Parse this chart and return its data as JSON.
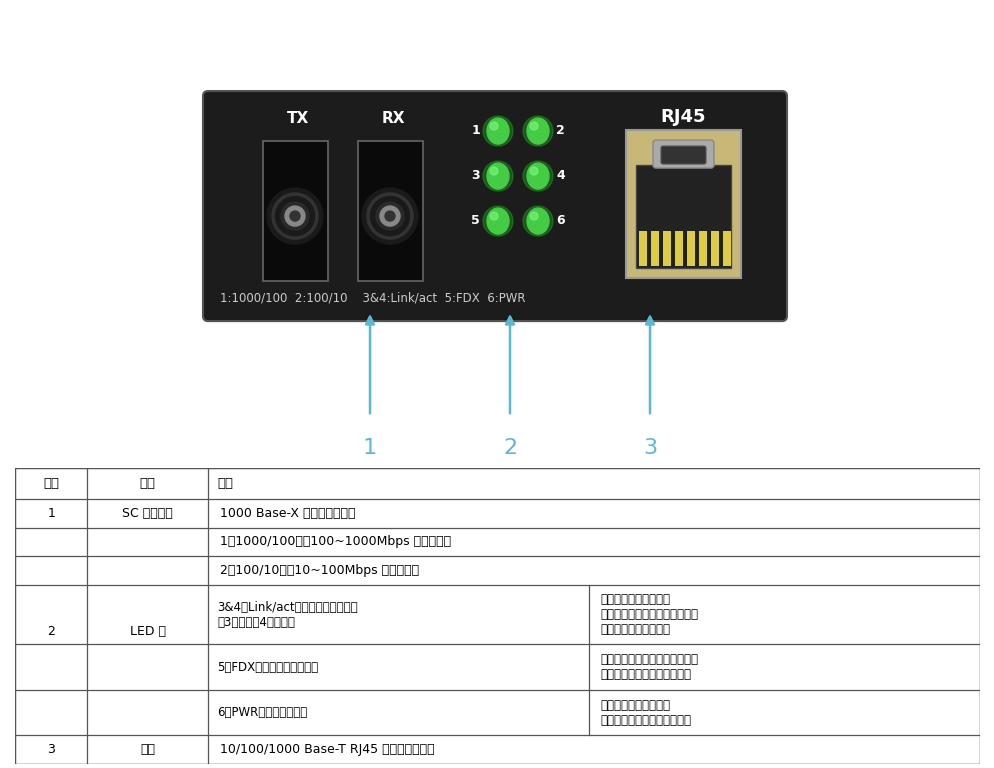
{
  "bg_color": "#ffffff",
  "arrow_color": "#5bb8d4",
  "device_bg": "#1c1c1c",
  "device_edge": "#444444",
  "led_color": "#44cc44",
  "led_glow": "#22aa22",
  "rj45_body": "#b8a878",
  "rj45_inner": "#333333",
  "sc_housing": "#111111",
  "sc_edge": "#555555",
  "text_white": "#ffffff",
  "text_light": "#cccccc",
  "table_border": "#555555",
  "table_text": "#000000",
  "header_row": [
    "序号",
    "名称",
    "功能"
  ],
  "row1_no": "1",
  "row1_name": "SC 光纤接口",
  "row1_func": "1000 Base-X 光口，传输数据",
  "row2_no": "2",
  "row2_name": "LED 灯",
  "sub1_func": "1（1000/100）：100~1000Mbps 速率指示灯",
  "sub2_func": "2（100/10）：10~100Mbps 速率指示灯",
  "sub3_left": "3&4（Link/act）：数据交换指示灯\n（3：光口，4：网口）",
  "sub3_right": "灯常亮：端口连接正常\n灯闪烁：端口正在进行数据交换\n灯灯：端口未正常连接",
  "sub4_left": "5（FDX）：工作模式指示灯",
  "sub4_right": "灯常亮：网口工作在全双工模式\n灯灯：网口工作在半双工模式",
  "sub5_left": "6（PWR）：电源指示灯",
  "sub5_right": "灯常亮：设备正常供电\n灯灯：设备未供电或供电异常",
  "row3_no": "3",
  "row3_name": "网口",
  "row3_func": "10/100/1000 Base-T RJ45 网口，传输数据",
  "bottom_text": "1:1000/100  2:100/10    3&4:Link/act  5:FDX  6:PWR",
  "tx_label": "TX",
  "rx_label": "RX",
  "rj45_label": "RJ45"
}
